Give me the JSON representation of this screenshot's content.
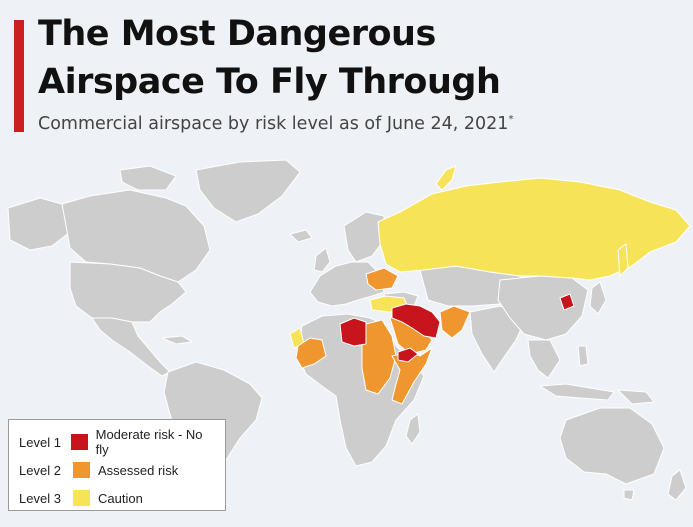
{
  "header": {
    "title_line1": "The Most Dangerous",
    "title_line2": "Airspace To Fly Through",
    "subtitle": "Commercial airspace by risk level as of June 24, 2021",
    "footnote_mark": "*"
  },
  "colors": {
    "accent": "#cc1f1f",
    "ocean": "#eef1f6",
    "land": "#cdcdcd",
    "level1": "#c8141c",
    "level2": "#f0962e",
    "level3": "#f7e358"
  },
  "legend": {
    "items": [
      {
        "level": "Level 1",
        "label": "Moderate risk - No fly",
        "color": "#c8141c"
      },
      {
        "level": "Level 2",
        "label": "Assessed risk",
        "color": "#f0962e"
      },
      {
        "level": "Level 3",
        "label": "Caution",
        "color": "#f7e358"
      }
    ]
  }
}
